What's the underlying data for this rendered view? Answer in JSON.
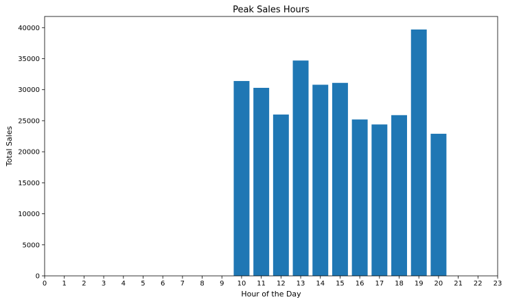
{
  "chart_data": {
    "type": "bar",
    "title": "Peak Sales Hours",
    "xlabel": "Hour of the Day",
    "ylabel": "Total Sales",
    "x_ticks": [
      "0",
      "1",
      "2",
      "3",
      "4",
      "5",
      "6",
      "7",
      "8",
      "9",
      "10",
      "11",
      "12",
      "13",
      "14",
      "15",
      "16",
      "17",
      "18",
      "19",
      "20",
      "21",
      "22",
      "23"
    ],
    "y_ticks": [
      "0",
      "5000",
      "10000",
      "15000",
      "20000",
      "25000",
      "30000",
      "35000",
      "40000"
    ],
    "categories": [
      10,
      11,
      12,
      13,
      14,
      15,
      16,
      17,
      18,
      19,
      20
    ],
    "values": [
      31400,
      30300,
      26000,
      34700,
      30800,
      31100,
      25200,
      24400,
      25900,
      39700,
      22900
    ],
    "xlim": [
      0,
      23
    ],
    "ylim": [
      0,
      41800
    ],
    "grid": false,
    "bar_color": "#1f77b4"
  }
}
